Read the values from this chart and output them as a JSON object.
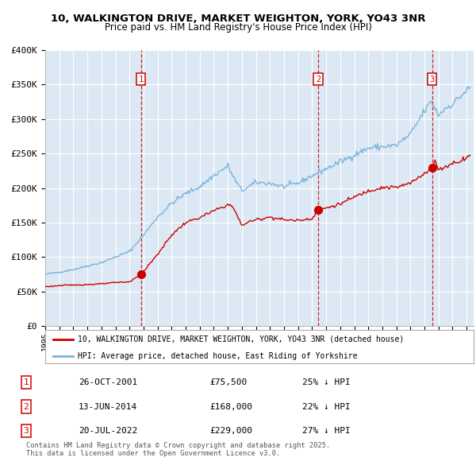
{
  "title_line1": "10, WALKINGTON DRIVE, MARKET WEIGHTON, YORK, YO43 3NR",
  "title_line2": "Price paid vs. HM Land Registry's House Price Index (HPI)",
  "legend_property": "10, WALKINGTON DRIVE, MARKET WEIGHTON, YORK, YO43 3NR (detached house)",
  "legend_hpi": "HPI: Average price, detached house, East Riding of Yorkshire",
  "sales": [
    {
      "num": 1,
      "date": "26-OCT-2001",
      "date_dec": 2001.82,
      "price": 75500,
      "pct": "25% ↓ HPI"
    },
    {
      "num": 2,
      "date": "13-JUN-2014",
      "date_dec": 2014.44,
      "price": 168000,
      "pct": "22% ↓ HPI"
    },
    {
      "num": 3,
      "date": "20-JUL-2022",
      "date_dec": 2022.55,
      "price": 229000,
      "pct": "27% ↓ HPI"
    }
  ],
  "ytick_values": [
    0,
    50000,
    100000,
    150000,
    200000,
    250000,
    300000,
    350000,
    400000
  ],
  "property_color": "#cc0000",
  "hpi_color": "#7ab3d8",
  "background_color": "#dce9f5",
  "vline_color": "#cc0000",
  "footnote_line1": "Contains HM Land Registry data © Crown copyright and database right 2025.",
  "footnote_line2": "This data is licensed under the Open Government Licence v3.0.",
  "xmin": 1995.0,
  "xmax": 2025.5,
  "ymin": 0,
  "ymax": 400000,
  "hpi_anchors": {
    "1995.0": 75000,
    "1996.0": 78000,
    "1997.0": 82000,
    "1998.0": 87000,
    "1999.0": 92000,
    "2000.0": 100000,
    "2001.0": 108000,
    "2002.0": 132000,
    "2003.0": 158000,
    "2004.0": 178000,
    "2005.0": 192000,
    "2006.0": 202000,
    "2007.0": 218000,
    "2008.0": 232000,
    "2008.5": 212000,
    "2009.0": 196000,
    "2009.5": 202000,
    "2010.0": 208000,
    "2011.0": 207000,
    "2012.0": 202000,
    "2013.0": 207000,
    "2014.0": 218000,
    "2015.0": 228000,
    "2016.0": 238000,
    "2017.0": 248000,
    "2018.0": 258000,
    "2019.0": 260000,
    "2020.0": 262000,
    "2021.0": 278000,
    "2022.0": 312000,
    "2022.5": 326000,
    "2023.0": 306000,
    "2023.5": 316000,
    "2024.0": 322000,
    "2024.5": 332000,
    "2025.2": 345000
  },
  "prop_anchors": {
    "1995.0": 57000,
    "1996.0": 58500,
    "1997.0": 59500,
    "1998.0": 60000,
    "1999.0": 61000,
    "2000.0": 63000,
    "2001.0": 64000,
    "2001.82": 75500,
    "2002.2": 84000,
    "2003.0": 104000,
    "2004.0": 132000,
    "2005.0": 150000,
    "2006.0": 157000,
    "2007.0": 167000,
    "2008.0": 176000,
    "2008.35": 173000,
    "2009.0": 146000,
    "2009.5": 151000,
    "2010.0": 154000,
    "2011.0": 158000,
    "2012.0": 154000,
    "2013.0": 153000,
    "2014.0": 156000,
    "2014.44": 168000,
    "2015.0": 171000,
    "2016.0": 177000,
    "2017.0": 187000,
    "2018.0": 196000,
    "2019.0": 201000,
    "2020.0": 201000,
    "2021.0": 207000,
    "2022.0": 222000,
    "2022.55": 229000,
    "2022.75": 241000,
    "2023.0": 226000,
    "2023.5": 231000,
    "2024.0": 236000,
    "2024.5": 239000,
    "2025.2": 247000
  }
}
